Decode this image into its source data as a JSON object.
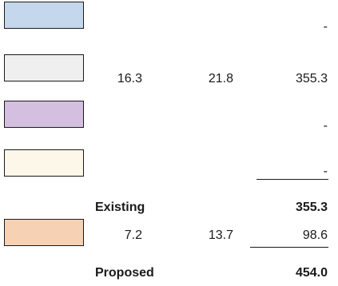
{
  "rows": [
    {
      "swatch_color": "#c5d7ec",
      "c1": "",
      "c2": "",
      "total": "-"
    },
    {
      "swatch_color": "#efefef",
      "c1": "16.3",
      "c2": "21.8",
      "total": "355.3"
    },
    {
      "swatch_color": "#d4bfe0",
      "c1": "",
      "c2": "",
      "total": "-"
    },
    {
      "swatch_color": "#fdf7ea",
      "c1": "",
      "c2": "",
      "total": "-"
    }
  ],
  "existing": {
    "label": "Existing",
    "total": "355.3"
  },
  "addition": {
    "swatch_color": "#f6d1b3",
    "c1": "7.2",
    "c2": "13.7",
    "total": "98.6"
  },
  "proposed": {
    "label": "Proposed",
    "total": "454.0"
  }
}
